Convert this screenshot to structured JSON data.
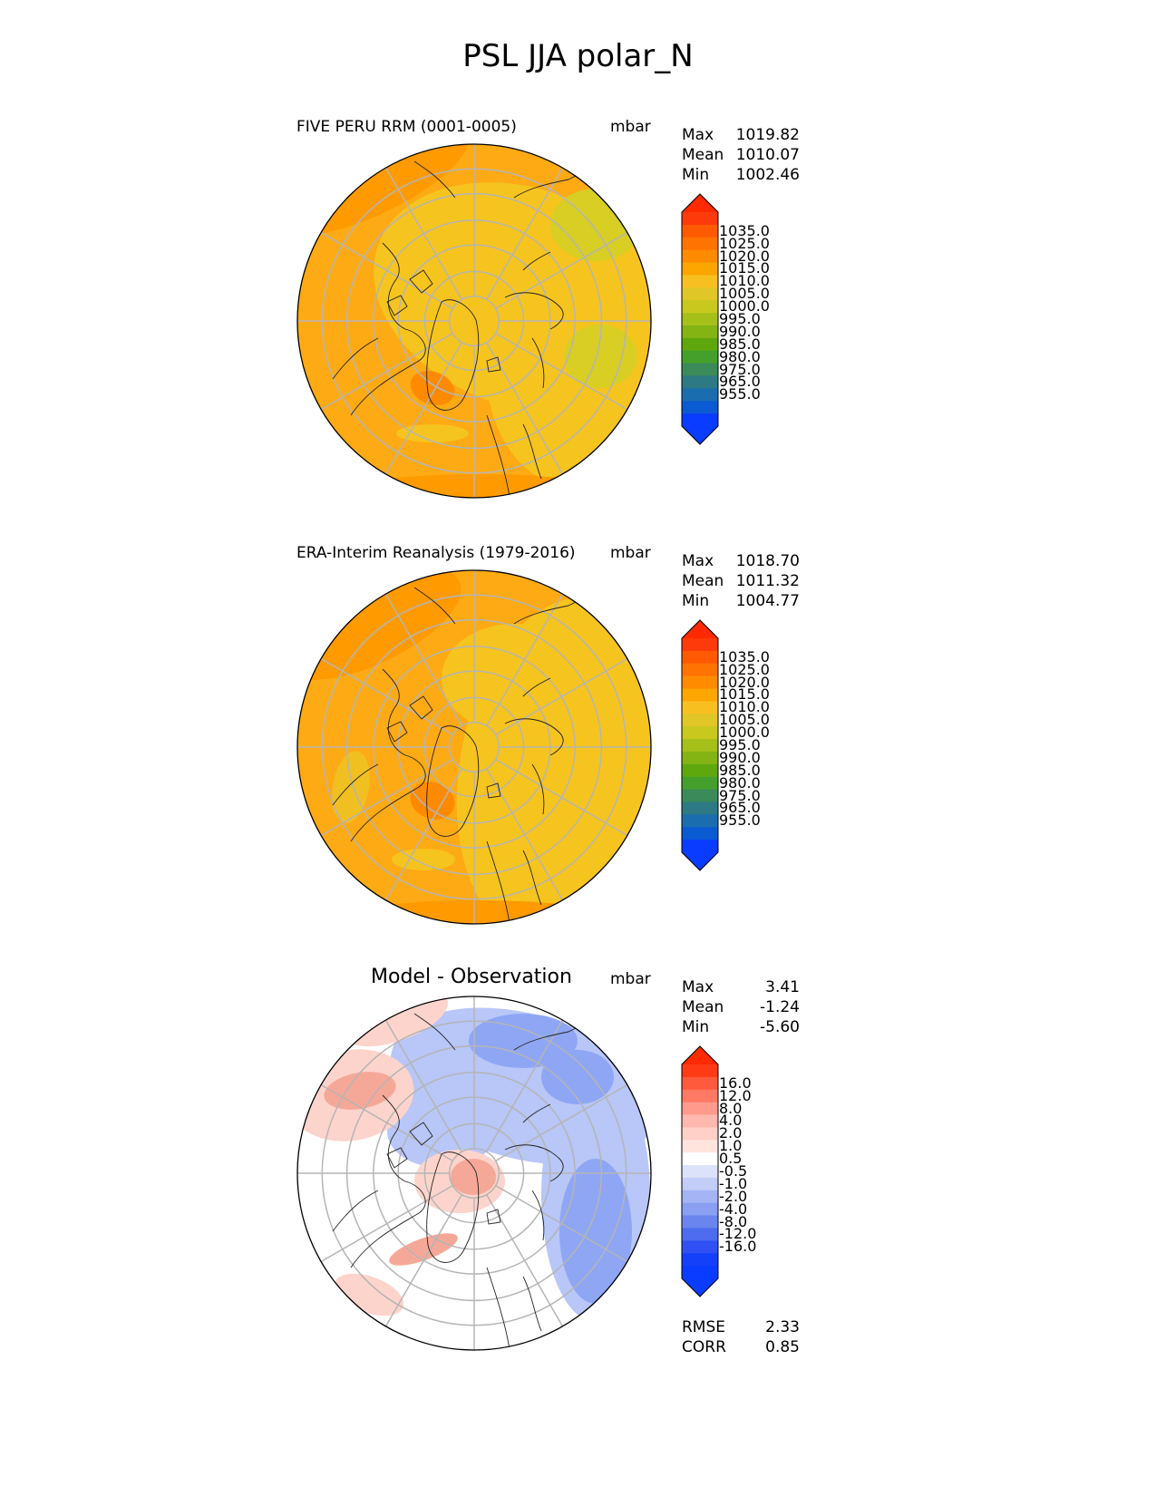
{
  "page": {
    "title": "PSL JJA polar_N"
  },
  "chart_data": [
    {
      "type": "heatmap",
      "projection": "north polar stereographic",
      "title": "FIVE PERU RRM (0001-0005)",
      "units": "mbar",
      "stats": {
        "max_label": "Max",
        "max": "1019.82",
        "mean_label": "Mean",
        "mean": "1010.07",
        "min_label": "Min",
        "min": "1002.46"
      },
      "colorbar": {
        "extend": "both",
        "ticks": [
          "1035.0",
          "1025.0",
          "1020.0",
          "1015.0",
          "1010.0",
          "1005.0",
          "1000.0",
          "995.0",
          "990.0",
          "985.0",
          "980.0",
          "975.0",
          "965.0",
          "955.0"
        ],
        "colors": [
          "#ff3a0a",
          "#ff5a00",
          "#ff7300",
          "#ff8c00",
          "#fea600",
          "#f7c020",
          "#e1c628",
          "#c8c81e",
          "#a6c01a",
          "#84b414",
          "#5ea80e",
          "#44a02a",
          "#3a8a5a",
          "#2d7a84",
          "#1a6eb0",
          "#0a5ad2",
          "#0a3cff"
        ],
        "over_color": "#ff2a00",
        "under_color": "#0a3cff"
      },
      "field_colors": {
        "background": "#feaa14",
        "high": "#ff9a00",
        "highest": "#ff8a00",
        "low": "#f6c41e",
        "lowest": "#d8ce24"
      }
    },
    {
      "type": "heatmap",
      "projection": "north polar stereographic",
      "title": "ERA-Interim Reanalysis (1979-2016)",
      "units": "mbar",
      "stats": {
        "max_label": "Max",
        "max": "1018.70",
        "mean_label": "Mean",
        "mean": "1011.32",
        "min_label": "Min",
        "min": "1004.77"
      },
      "colorbar": {
        "extend": "both",
        "ticks": [
          "1035.0",
          "1025.0",
          "1020.0",
          "1015.0",
          "1010.0",
          "1005.0",
          "1000.0",
          "995.0",
          "990.0",
          "985.0",
          "980.0",
          "975.0",
          "965.0",
          "955.0"
        ],
        "colors": [
          "#ff3a0a",
          "#ff5a00",
          "#ff7300",
          "#ff8c00",
          "#fea600",
          "#f7c020",
          "#e1c628",
          "#c8c81e",
          "#a6c01a",
          "#84b414",
          "#5ea80e",
          "#44a02a",
          "#3a8a5a",
          "#2d7a84",
          "#1a6eb0",
          "#0a5ad2",
          "#0a3cff"
        ],
        "over_color": "#ff2a00",
        "under_color": "#0a3cff"
      },
      "field_colors": {
        "background": "#feaa14",
        "high": "#ff9a00",
        "highest": "#ff8a00",
        "low": "#f6c41e",
        "lowest": "#f0c020"
      }
    },
    {
      "type": "heatmap",
      "projection": "north polar stereographic",
      "title": "Model - Observation",
      "units": "mbar",
      "stats": {
        "max_label": "Max",
        "max": "3.41",
        "mean_label": "Mean",
        "mean": "-1.24",
        "min_label": "Min",
        "min": "-5.60"
      },
      "extra_stats": {
        "rmse_label": "RMSE",
        "rmse": "2.33",
        "corr_label": "CORR",
        "corr": "0.85"
      },
      "colorbar": {
        "extend": "both",
        "ticks": [
          "16.0",
          "12.0",
          "8.0",
          "4.0",
          "2.0",
          "1.0",
          "0.5",
          "-0.5",
          "-1.0",
          "-2.0",
          "-4.0",
          "-8.0",
          "-12.0",
          "-16.0"
        ],
        "colors": [
          "#ff3a14",
          "#ff5a3c",
          "#ff7a64",
          "#ff9a8c",
          "#ffb8ae",
          "#ffd0c8",
          "#ffe4de",
          "#ffffff",
          "#dde2fb",
          "#c2cdf8",
          "#a4b4f4",
          "#8a9ff2",
          "#6a86ee",
          "#4e6cf0",
          "#3050f4",
          "#1440fa",
          "#0a3cff"
        ],
        "over_color": "#ff2a00",
        "under_color": "#0a3cff"
      },
      "field_colors": {
        "background": "#ffffff",
        "pos_light": "#fdd4cc",
        "pos_mid": "#f6a898",
        "neg_light": "#b8c6f8",
        "neg_mid": "#8ea6f4",
        "neg_strong": "#6f8cf0"
      }
    }
  ]
}
